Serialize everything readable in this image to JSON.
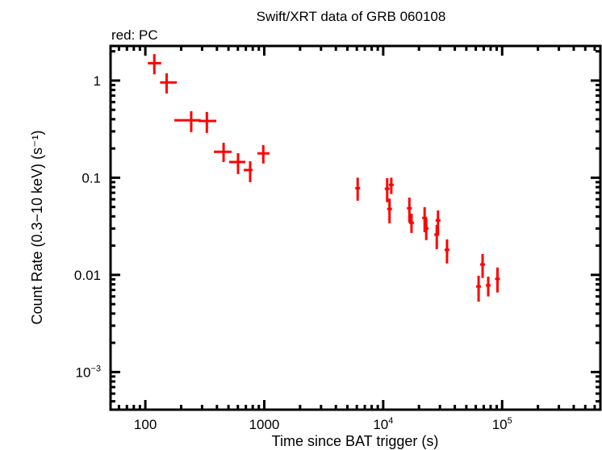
{
  "chart_data": {
    "type": "scatter",
    "title": "Swift/XRT data of GRB 060108",
    "subtitle": "red: PC",
    "xlabel": "Time since BAT trigger (s)",
    "ylabel": "Count Rate (0.3−10 keV) (s⁻¹)",
    "xscale": "log",
    "yscale": "log",
    "xlim": [
      51,
      670000
    ],
    "ylim": [
      0.00041,
      2.27
    ],
    "grid": false,
    "x_ticks": [
      {
        "v": 100,
        "label": "100"
      },
      {
        "v": 1000,
        "label": "1000"
      },
      {
        "v": 10000,
        "label": "10",
        "exp": "4"
      },
      {
        "v": 100000,
        "label": "10",
        "exp": "5"
      }
    ],
    "y_ticks": [
      {
        "v": 1,
        "label": "1"
      },
      {
        "v": 0.1,
        "label": "0.1"
      },
      {
        "v": 0.01,
        "label": "0.01"
      },
      {
        "v": 0.001,
        "label": "10",
        "exp": "−3"
      }
    ],
    "series": [
      {
        "color": "#ff0000",
        "points": [
          {
            "x": 119,
            "y": 1.51,
            "xlo": 105,
            "xhi": 136,
            "ylo": 1.16,
            "yhi": 1.87
          },
          {
            "x": 151,
            "y": 0.957,
            "xlo": 133,
            "xhi": 184,
            "ylo": 0.737,
            "yhi": 1.19
          },
          {
            "x": 243,
            "y": 0.39,
            "xlo": 175,
            "xhi": 292,
            "ylo": 0.295,
            "yhi": 0.484
          },
          {
            "x": 329,
            "y": 0.384,
            "xlo": 280,
            "xhi": 395,
            "ylo": 0.289,
            "yhi": 0.475
          },
          {
            "x": 455,
            "y": 0.185,
            "xlo": 377,
            "xhi": 531,
            "ylo": 0.145,
            "yhi": 0.229
          },
          {
            "x": 602,
            "y": 0.145,
            "xlo": 507,
            "xhi": 693,
            "ylo": 0.109,
            "yhi": 0.179
          },
          {
            "x": 761,
            "y": 0.12,
            "xlo": 672,
            "xhi": 797,
            "ylo": 0.09,
            "yhi": 0.148
          },
          {
            "x": 981,
            "y": 0.178,
            "xlo": 875,
            "xhi": 1107,
            "ylo": 0.14,
            "yhi": 0.217
          },
          {
            "x": 6100,
            "y": 0.078,
            "ylo": 0.058,
            "yhi": 0.1
          },
          {
            "x": 10800,
            "y": 0.077,
            "ylo": 0.056,
            "yhi": 0.099
          },
          {
            "x": 11300,
            "y": 0.0477,
            "ylo": 0.034,
            "yhi": 0.061
          },
          {
            "x": 11700,
            "y": 0.0845,
            "ylo": 0.068,
            "yhi": 0.1
          },
          {
            "x": 16600,
            "y": 0.0485,
            "ylo": 0.0346,
            "yhi": 0.0625
          },
          {
            "x": 17300,
            "y": 0.0344,
            "ylo": 0.027,
            "yhi": 0.0427
          },
          {
            "x": 22300,
            "y": 0.0386,
            "ylo": 0.0275,
            "yhi": 0.0498
          },
          {
            "x": 23000,
            "y": 0.0301,
            "ylo": 0.0228,
            "yhi": 0.0381
          },
          {
            "x": 28200,
            "y": 0.026,
            "ylo": 0.0184,
            "yhi": 0.0327
          },
          {
            "x": 28900,
            "y": 0.0364,
            "ylo": 0.0265,
            "yhi": 0.0461
          },
          {
            "x": 34400,
            "y": 0.0181,
            "ylo": 0.0131,
            "yhi": 0.0232
          },
          {
            "x": 63400,
            "y": 0.0076,
            "ylo": 0.0053,
            "yhi": 0.0098
          },
          {
            "x": 68500,
            "y": 0.0128,
            "ylo": 0.0093,
            "yhi": 0.0164
          },
          {
            "x": 76400,
            "y": 0.0078,
            "ylo": 0.006,
            "yhi": 0.0096
          },
          {
            "x": 91400,
            "y": 0.0091,
            "ylo": 0.0066,
            "yhi": 0.0119
          }
        ]
      }
    ]
  }
}
